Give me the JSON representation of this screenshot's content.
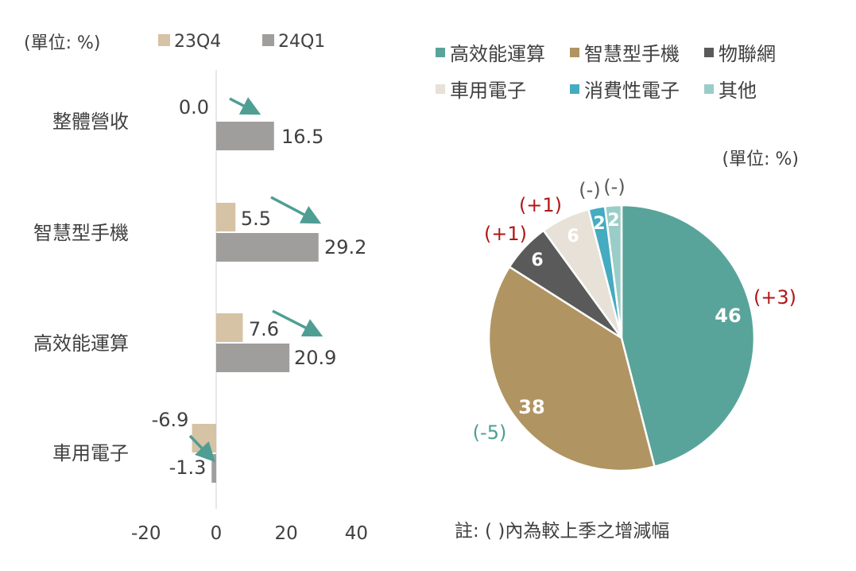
{
  "chart_data": [
    {
      "type": "bar",
      "orientation": "horizontal",
      "unit_label": "(單位: %)",
      "categories": [
        "整體營收",
        "智慧型手機",
        "高效能運算",
        "車用電子"
      ],
      "series": [
        {
          "name": "23Q4",
          "values": [
            0.0,
            5.5,
            7.6,
            -6.9
          ],
          "value_labels": [
            "0.0",
            "5.5",
            "7.6",
            "-6.9"
          ],
          "color": "#D6C2A4"
        },
        {
          "name": "24Q1",
          "values": [
            16.5,
            29.2,
            20.9,
            -1.3
          ],
          "value_labels": [
            "16.5",
            "29.2",
            "20.9",
            "-1.3"
          ],
          "color": "#A09E9C"
        }
      ],
      "x_ticks": [
        "-20",
        "0",
        "20",
        "40"
      ],
      "x_tick_values": [
        -20,
        0,
        20,
        40
      ],
      "xlim": [
        -20,
        40
      ],
      "legend_position": "top",
      "annotation": "arrows from 23Q4 value to 24Q1 value",
      "arrow_color": "#4E9E94",
      "grid": false
    },
    {
      "type": "pie",
      "unit_label": "(單位: %)",
      "labels": [
        "高效能運算",
        "智慧型手機",
        "物聯網",
        "車用電子",
        "消費性電子",
        "其他"
      ],
      "values": [
        46,
        38,
        6,
        6,
        2,
        2
      ],
      "value_labels": [
        "46",
        "38",
        "6",
        "6",
        "2",
        "2"
      ],
      "changes": [
        "(+3)",
        "(-5)",
        "(+1)",
        "(+1)",
        "(-)",
        "(-)"
      ],
      "change_colors": [
        "#B01717",
        "#4E9E94",
        "#B01717",
        "#B01717",
        "#595959",
        "#595959"
      ],
      "colors": [
        "#58A49A",
        "#B09462",
        "#5A5A5A",
        "#E7E1D7",
        "#45ABC0",
        "#9BCDC8"
      ],
      "legend_position": "top",
      "note": "註: ( )內為較上季之增減幅"
    }
  ]
}
